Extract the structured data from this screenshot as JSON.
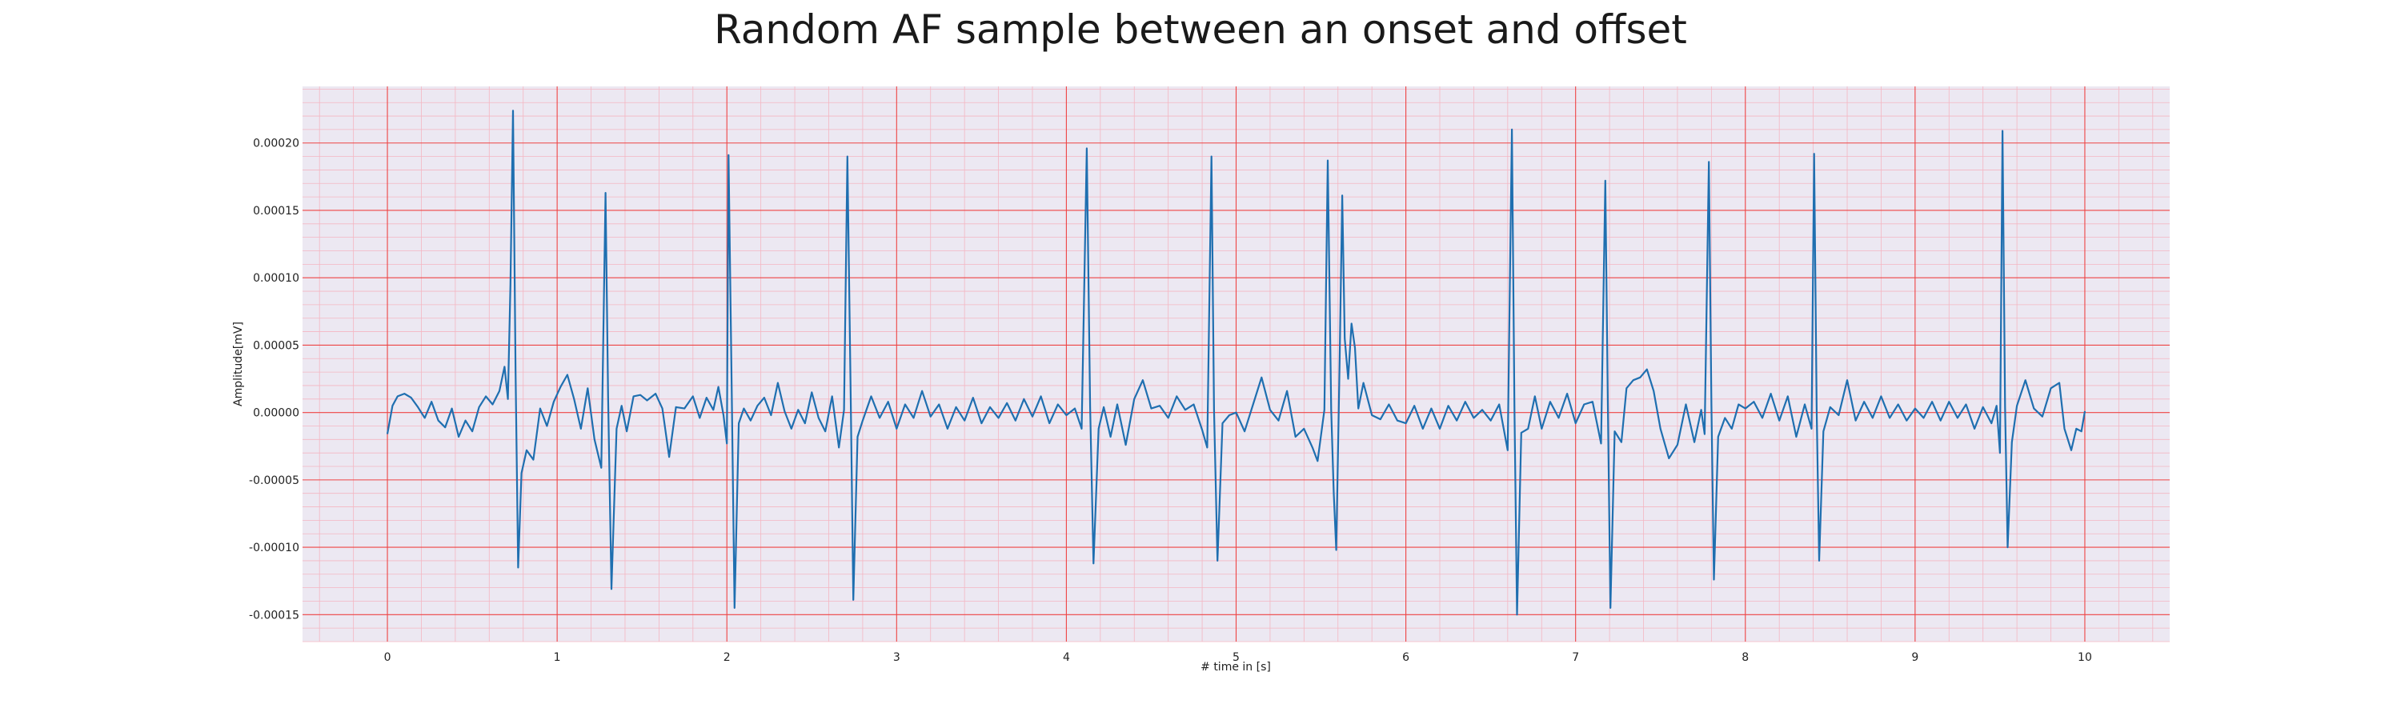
{
  "chart_data": {
    "type": "line",
    "title": "Random AF sample between an onset and offset",
    "xlabel": "# time in [s]",
    "ylabel": "Amplitude[mV]",
    "xlim": [
      -0.5,
      10.5
    ],
    "ylim": [
      -0.00017,
      0.000242
    ],
    "x_ticks": [
      0,
      1,
      2,
      3,
      4,
      5,
      6,
      7,
      8,
      9,
      10
    ],
    "x_tick_labels": [
      "0",
      "1",
      "2",
      "3",
      "4",
      "5",
      "6",
      "7",
      "8",
      "9",
      "10"
    ],
    "y_ticks": [
      0.0002,
      0.00015,
      0.0001,
      5e-05,
      0.0,
      -5e-05,
      -0.0001,
      -0.00015
    ],
    "y_tick_labels": [
      "0.00020",
      "0.00015",
      "0.00010",
      "0.00005",
      "0.00000",
      "-0.00005",
      "-0.00010",
      "-0.00015"
    ],
    "grid": true,
    "minor_grid": true,
    "series": [
      {
        "points": [
          [
            0.0,
            -1.6e-05
          ],
          [
            0.03,
            5e-06
          ],
          [
            0.06,
            1.2e-05
          ],
          [
            0.1,
            1.4e-05
          ],
          [
            0.14,
            1.1e-05
          ],
          [
            0.18,
            4e-06
          ],
          [
            0.22,
            -4e-06
          ],
          [
            0.26,
            8e-06
          ],
          [
            0.3,
            -6e-06
          ],
          [
            0.34,
            -1.1e-05
          ],
          [
            0.38,
            3e-06
          ],
          [
            0.42,
            -1.8e-05
          ],
          [
            0.46,
            -6e-06
          ],
          [
            0.5,
            -1.4e-05
          ],
          [
            0.54,
            4e-06
          ],
          [
            0.58,
            1.2e-05
          ],
          [
            0.62,
            6e-06
          ],
          [
            0.66,
            1.6e-05
          ],
          [
            0.69,
            3.4e-05
          ],
          [
            0.71,
            1e-05
          ],
          [
            0.725,
            9.5e-05
          ],
          [
            0.74,
            0.000224
          ],
          [
            0.755,
            3e-05
          ],
          [
            0.77,
            -0.000115
          ],
          [
            0.79,
            -4.5e-05
          ],
          [
            0.82,
            -2.8e-05
          ],
          [
            0.86,
            -3.5e-05
          ],
          [
            0.9,
            3e-06
          ],
          [
            0.94,
            -1e-05
          ],
          [
            0.98,
            8e-06
          ],
          [
            1.02,
            1.9e-05
          ],
          [
            1.06,
            2.8e-05
          ],
          [
            1.1,
            1e-05
          ],
          [
            1.14,
            -1.2e-05
          ],
          [
            1.18,
            1.8e-05
          ],
          [
            1.22,
            -2e-05
          ],
          [
            1.26,
            -4.1e-05
          ],
          [
            1.285,
            0.000163
          ],
          [
            1.3,
            1.2e-05
          ],
          [
            1.32,
            -0.000131
          ],
          [
            1.35,
            -1.2e-05
          ],
          [
            1.38,
            5e-06
          ],
          [
            1.41,
            -1.4e-05
          ],
          [
            1.45,
            1.2e-05
          ],
          [
            1.49,
            1.3e-05
          ],
          [
            1.53,
            9e-06
          ],
          [
            1.58,
            1.4e-05
          ],
          [
            1.62,
            3e-06
          ],
          [
            1.66,
            -3.3e-05
          ],
          [
            1.7,
            4e-06
          ],
          [
            1.75,
            3e-06
          ],
          [
            1.8,
            1.2e-05
          ],
          [
            1.84,
            -4e-06
          ],
          [
            1.88,
            1.1e-05
          ],
          [
            1.92,
            2e-06
          ],
          [
            1.95,
            1.9e-05
          ],
          [
            1.98,
            -2e-06
          ],
          [
            2.0,
            -2.3e-05
          ],
          [
            2.01,
            0.000191
          ],
          [
            2.03,
            2e-06
          ],
          [
            2.045,
            -0.000145
          ],
          [
            2.07,
            -8e-06
          ],
          [
            2.1,
            3e-06
          ],
          [
            2.14,
            -6e-06
          ],
          [
            2.18,
            5e-06
          ],
          [
            2.22,
            1.1e-05
          ],
          [
            2.26,
            -2e-06
          ],
          [
            2.3,
            2.2e-05
          ],
          [
            2.34,
            1e-06
          ],
          [
            2.38,
            -1.2e-05
          ],
          [
            2.42,
            2e-06
          ],
          [
            2.46,
            -8e-06
          ],
          [
            2.5,
            1.5e-05
          ],
          [
            2.54,
            -4e-06
          ],
          [
            2.58,
            -1.4e-05
          ],
          [
            2.62,
            1.2e-05
          ],
          [
            2.66,
            -2.6e-05
          ],
          [
            2.69,
            2e-06
          ],
          [
            2.71,
            0.00019
          ],
          [
            2.73,
            5e-06
          ],
          [
            2.745,
            -0.000139
          ],
          [
            2.77,
            -1.8e-05
          ],
          [
            2.8,
            -6e-06
          ],
          [
            2.85,
            1.2e-05
          ],
          [
            2.9,
            -4e-06
          ],
          [
            2.95,
            8e-06
          ],
          [
            3.0,
            -1.2e-05
          ],
          [
            3.05,
            6e-06
          ],
          [
            3.1,
            -4e-06
          ],
          [
            3.15,
            1.6e-05
          ],
          [
            3.2,
            -3e-06
          ],
          [
            3.25,
            6e-06
          ],
          [
            3.3,
            -1.2e-05
          ],
          [
            3.35,
            4e-06
          ],
          [
            3.4,
            -6e-06
          ],
          [
            3.45,
            1.1e-05
          ],
          [
            3.5,
            -8e-06
          ],
          [
            3.55,
            4e-06
          ],
          [
            3.6,
            -4e-06
          ],
          [
            3.65,
            7e-06
          ],
          [
            3.7,
            -6e-06
          ],
          [
            3.75,
            1e-05
          ],
          [
            3.8,
            -3e-06
          ],
          [
            3.85,
            1.2e-05
          ],
          [
            3.9,
            -8e-06
          ],
          [
            3.95,
            6e-06
          ],
          [
            4.0,
            -2e-06
          ],
          [
            4.05,
            3e-06
          ],
          [
            4.09,
            -1.2e-05
          ],
          [
            4.12,
            0.000196
          ],
          [
            4.14,
            4e-06
          ],
          [
            4.16,
            -0.000112
          ],
          [
            4.19,
            -1.2e-05
          ],
          [
            4.22,
            4e-06
          ],
          [
            4.26,
            -1.8e-05
          ],
          [
            4.3,
            6e-06
          ],
          [
            4.35,
            -2.4e-05
          ],
          [
            4.4,
            1e-05
          ],
          [
            4.45,
            2.4e-05
          ],
          [
            4.5,
            3e-06
          ],
          [
            4.55,
            5e-06
          ],
          [
            4.6,
            -4e-06
          ],
          [
            4.65,
            1.2e-05
          ],
          [
            4.7,
            2e-06
          ],
          [
            4.75,
            6e-06
          ],
          [
            4.8,
            -1.3e-05
          ],
          [
            4.83,
            -2.6e-05
          ],
          [
            4.855,
            0.00019
          ],
          [
            4.87,
            2e-06
          ],
          [
            4.89,
            -0.00011
          ],
          [
            4.92,
            -8e-06
          ],
          [
            4.96,
            -2e-06
          ],
          [
            5.0,
            0.0
          ],
          [
            5.05,
            -1.4e-05
          ],
          [
            5.1,
            6e-06
          ],
          [
            5.15,
            2.6e-05
          ],
          [
            5.2,
            2e-06
          ],
          [
            5.25,
            -6e-06
          ],
          [
            5.3,
            1.6e-05
          ],
          [
            5.35,
            -1.8e-05
          ],
          [
            5.4,
            -1.2e-05
          ],
          [
            5.45,
            -2.6e-05
          ],
          [
            5.48,
            -3.6e-05
          ],
          [
            5.52,
            2e-06
          ],
          [
            5.54,
            0.000187
          ],
          [
            5.56,
            2e-06
          ],
          [
            5.575,
            -6e-05
          ],
          [
            5.59,
            -0.000102
          ],
          [
            5.61,
            4e-05
          ],
          [
            5.625,
            0.000161
          ],
          [
            5.64,
            5.5e-05
          ],
          [
            5.66,
            2.5e-05
          ],
          [
            5.68,
            6.6e-05
          ],
          [
            5.7,
            4.8e-05
          ],
          [
            5.72,
            3e-06
          ],
          [
            5.75,
            2.2e-05
          ],
          [
            5.8,
            -2e-06
          ],
          [
            5.85,
            -5e-06
          ],
          [
            5.9,
            6e-06
          ],
          [
            5.95,
            -6e-06
          ],
          [
            6.0,
            -8e-06
          ],
          [
            6.05,
            5e-06
          ],
          [
            6.1,
            -1.2e-05
          ],
          [
            6.15,
            3e-06
          ],
          [
            6.2,
            -1.2e-05
          ],
          [
            6.25,
            5e-06
          ],
          [
            6.3,
            -6e-06
          ],
          [
            6.35,
            8e-06
          ],
          [
            6.4,
            -4e-06
          ],
          [
            6.45,
            2e-06
          ],
          [
            6.5,
            -6e-06
          ],
          [
            6.55,
            6e-06
          ],
          [
            6.6,
            -2.8e-05
          ],
          [
            6.625,
            0.00021
          ],
          [
            6.64,
            2e-06
          ],
          [
            6.655,
            -0.00015
          ],
          [
            6.68,
            -1.5e-05
          ],
          [
            6.72,
            -1.2e-05
          ],
          [
            6.76,
            1.2e-05
          ],
          [
            6.8,
            -1.2e-05
          ],
          [
            6.85,
            8e-06
          ],
          [
            6.9,
            -4e-06
          ],
          [
            6.95,
            1.4e-05
          ],
          [
            7.0,
            -8e-06
          ],
          [
            7.05,
            6e-06
          ],
          [
            7.1,
            8e-06
          ],
          [
            7.15,
            -2.3e-05
          ],
          [
            7.175,
            0.000172
          ],
          [
            7.19,
            5e-06
          ],
          [
            7.205,
            -0.000145
          ],
          [
            7.23,
            -1.4e-05
          ],
          [
            7.27,
            -2.2e-05
          ],
          [
            7.3,
            1.8e-05
          ],
          [
            7.34,
            2.4e-05
          ],
          [
            7.38,
            2.6e-05
          ],
          [
            7.42,
            3.2e-05
          ],
          [
            7.46,
            1.6e-05
          ],
          [
            7.5,
            -1.2e-05
          ],
          [
            7.55,
            -3.4e-05
          ],
          [
            7.6,
            -2.4e-05
          ],
          [
            7.65,
            6e-06
          ],
          [
            7.7,
            -2.2e-05
          ],
          [
            7.74,
            2e-06
          ],
          [
            7.76,
            -1.6e-05
          ],
          [
            7.785,
            0.000186
          ],
          [
            7.8,
            5e-06
          ],
          [
            7.815,
            -0.000124
          ],
          [
            7.84,
            -1.8e-05
          ],
          [
            7.88,
            -4e-06
          ],
          [
            7.92,
            -1.2e-05
          ],
          [
            7.96,
            6e-06
          ],
          [
            8.0,
            3e-06
          ],
          [
            8.05,
            8e-06
          ],
          [
            8.1,
            -4e-06
          ],
          [
            8.15,
            1.4e-05
          ],
          [
            8.2,
            -6e-06
          ],
          [
            8.25,
            1.2e-05
          ],
          [
            8.3,
            -1.8e-05
          ],
          [
            8.35,
            6e-06
          ],
          [
            8.39,
            -1.2e-05
          ],
          [
            8.405,
            0.000192
          ],
          [
            8.42,
            2e-06
          ],
          [
            8.435,
            -0.00011
          ],
          [
            8.46,
            -1.4e-05
          ],
          [
            8.5,
            4e-06
          ],
          [
            8.55,
            -2e-06
          ],
          [
            8.6,
            2.4e-05
          ],
          [
            8.65,
            -6e-06
          ],
          [
            8.7,
            8e-06
          ],
          [
            8.75,
            -4e-06
          ],
          [
            8.8,
            1.2e-05
          ],
          [
            8.85,
            -4e-06
          ],
          [
            8.9,
            6e-06
          ],
          [
            8.95,
            -6e-06
          ],
          [
            9.0,
            3e-06
          ],
          [
            9.05,
            -4e-06
          ],
          [
            9.1,
            8e-06
          ],
          [
            9.15,
            -6e-06
          ],
          [
            9.2,
            8e-06
          ],
          [
            9.25,
            -4e-06
          ],
          [
            9.3,
            6e-06
          ],
          [
            9.35,
            -1.2e-05
          ],
          [
            9.4,
            4e-06
          ],
          [
            9.45,
            -8e-06
          ],
          [
            9.48,
            5e-06
          ],
          [
            9.5,
            -3e-05
          ],
          [
            9.515,
            0.000209
          ],
          [
            9.53,
            4e-06
          ],
          [
            9.545,
            -0.0001
          ],
          [
            9.57,
            -2.2e-05
          ],
          [
            9.6,
            5e-06
          ],
          [
            9.65,
            2.4e-05
          ],
          [
            9.7,
            3e-06
          ],
          [
            9.75,
            -3e-06
          ],
          [
            9.8,
            1.8e-05
          ],
          [
            9.85,
            2.2e-05
          ],
          [
            9.88,
            -1.2e-05
          ],
          [
            9.92,
            -2.8e-05
          ],
          [
            9.95,
            -1.2e-05
          ],
          [
            9.98,
            -1.4e-05
          ],
          [
            10.0,
            1e-06
          ]
        ],
        "color": "#1f6fb0"
      }
    ]
  }
}
